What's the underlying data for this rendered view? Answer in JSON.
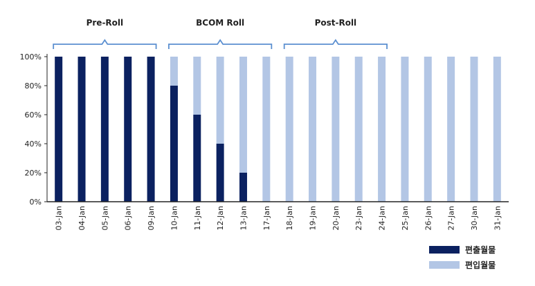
{
  "chart_data": {
    "type": "bar",
    "stacked": true,
    "categories": [
      "03-Jan",
      "04-Jan",
      "05-Jan",
      "06-Jan",
      "09-Jan",
      "10-Jan",
      "11-Jan",
      "12-Jan",
      "13-Jan",
      "17-Jan",
      "18-Jan",
      "19-Jan",
      "20-Jan",
      "23-Jan",
      "24-Jan",
      "25-Jan",
      "26-Jan",
      "27-Jan",
      "30-Jan",
      "31-Jan"
    ],
    "series": [
      {
        "name": "편출월물",
        "color": "#0b2160",
        "values": [
          100,
          100,
          100,
          100,
          100,
          80,
          60,
          40,
          20,
          0,
          0,
          0,
          0,
          0,
          0,
          0,
          0,
          0,
          0,
          0
        ]
      },
      {
        "name": "편입월물",
        "color": "#b3c6e5",
        "values": [
          0,
          0,
          0,
          0,
          0,
          20,
          40,
          60,
          80,
          100,
          100,
          100,
          100,
          100,
          100,
          100,
          100,
          100,
          100,
          100
        ]
      }
    ],
    "ylim": [
      0,
      100
    ],
    "yticks": [
      "0%",
      "20%",
      "40%",
      "60%",
      "80%",
      "100%"
    ],
    "grid": false,
    "legend_position": "bottom-right",
    "phases": [
      {
        "label": "Pre-Roll",
        "start": 0,
        "end": 4
      },
      {
        "label": "BCOM Roll",
        "start": 5,
        "end": 9
      },
      {
        "label": "Post-Roll",
        "start": 10,
        "end": 14
      }
    ],
    "bracket_color": "#5b8fd0"
  }
}
